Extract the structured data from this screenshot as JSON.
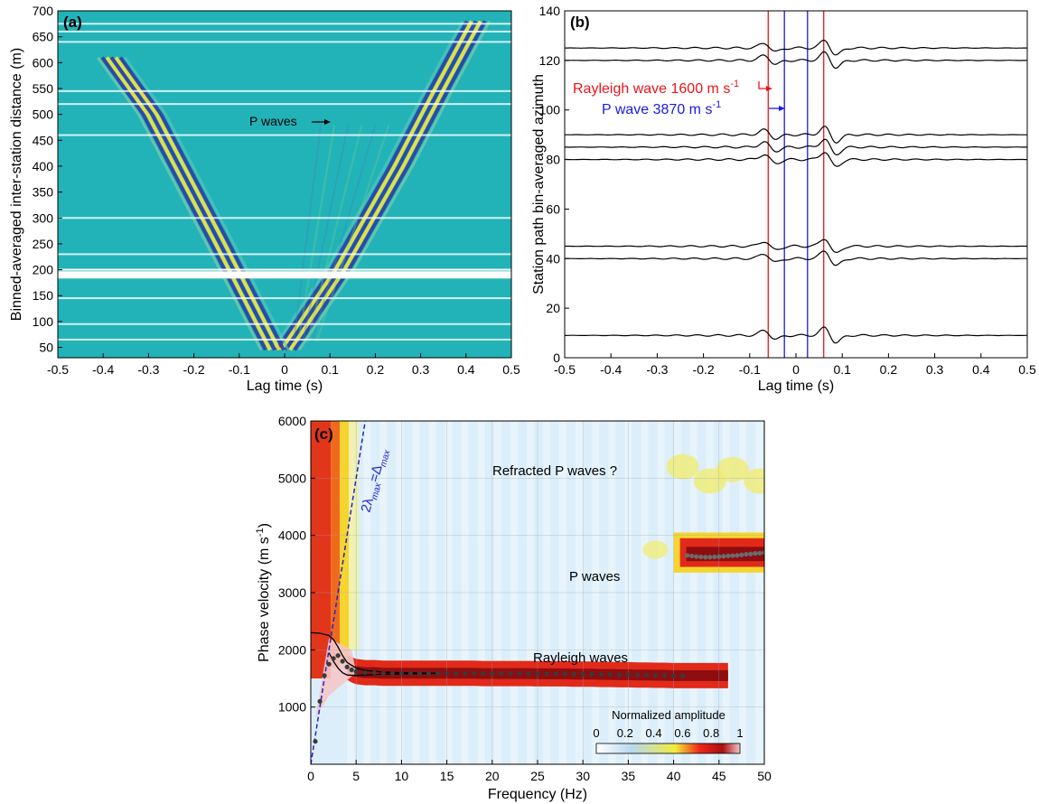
{
  "chart_data": [
    {
      "panel": "a",
      "type": "heatmap",
      "panel_label": "(a)",
      "xlabel": "Lag time (s)",
      "ylabel": "Binned-averaged inter-station distance (m)",
      "xlim": [
        -0.5,
        0.5
      ],
      "ylim": [
        30,
        700
      ],
      "xticks": [
        -0.5,
        -0.4,
        -0.3,
        -0.2,
        -0.1,
        0,
        0.1,
        0.2,
        0.3,
        0.4,
        0.5
      ],
      "xtick_labels": [
        "-0.5",
        "-0.4",
        "-0.3",
        "-0.2",
        "-0.1",
        "0",
        "0.1",
        "0.2",
        "0.3",
        "0.4",
        "0.5"
      ],
      "yticks": [
        50,
        100,
        150,
        200,
        250,
        300,
        350,
        400,
        450,
        500,
        550,
        600,
        650,
        700
      ],
      "ytick_labels": [
        "50",
        "100",
        "150",
        "200",
        "250",
        "300",
        "350",
        "400",
        "450",
        "500",
        "550",
        "600",
        "650",
        "700"
      ],
      "background_color": "#22b3b8",
      "colors": {
        "positive": "#f5e33c",
        "negative": "#2e3ea8"
      },
      "moveout_branches": [
        {
          "name": "Rayleigh wave (causal)",
          "points": [
            [
              0.0,
              45
            ],
            [
              0.12,
              200
            ],
            [
              0.25,
              400
            ],
            [
              0.34,
              550
            ],
            [
              0.42,
              680
            ]
          ]
        },
        {
          "name": "Rayleigh wave (acausal)",
          "points": [
            [
              -0.02,
              45
            ],
            [
              -0.14,
              250
            ],
            [
              -0.29,
              500
            ],
            [
              -0.38,
              610
            ]
          ]
        }
      ],
      "gap_rows_m": [
        190,
        200,
        145,
        230,
        95,
        65,
        640,
        660,
        675,
        520,
        545,
        460,
        300
      ],
      "annotation": "P waves",
      "annotation_point": [
        0.09,
        482
      ]
    },
    {
      "panel": "b",
      "type": "line",
      "panel_label": "(b)",
      "xlabel": "Lag time (s)",
      "ylabel": "Station path bin-averaged azimuth",
      "xlim": [
        -0.5,
        0.5
      ],
      "ylim": [
        0,
        140
      ],
      "xticks": [
        -0.5,
        -0.4,
        -0.3,
        -0.2,
        -0.1,
        0,
        0.1,
        0.2,
        0.3,
        0.4,
        0.5
      ],
      "xtick_labels": [
        "-0.5",
        "-0.4",
        "-0.3",
        "-0.2",
        "-0.1",
        "0",
        "0.1",
        "0.2",
        "0.3",
        "0.4",
        "0.5"
      ],
      "yticks": [
        0,
        20,
        40,
        60,
        80,
        100,
        120,
        140
      ],
      "ytick_labels": [
        "0",
        "20",
        "40",
        "60",
        "80",
        "100",
        "120",
        "140"
      ],
      "trace_baselines": [
        9,
        40,
        45,
        80,
        85,
        90,
        120,
        125
      ],
      "vertical_lines": [
        {
          "x": -0.06,
          "color": "#e8161b"
        },
        {
          "x": 0.06,
          "color": "#e8161b"
        },
        {
          "x": -0.025,
          "color": "#1a1ae6"
        },
        {
          "x": 0.025,
          "color": "#1a1ae6"
        }
      ],
      "annotations": [
        {
          "text": "Rayleigh wave 1600 m s",
          "sup": "-1",
          "color": "#e8161b",
          "anchor": [
            -0.41,
            103
          ]
        },
        {
          "text": "P wave 3870 m s",
          "sup": "-1",
          "color": "#1a1ae6",
          "anchor": [
            -0.36,
            98
          ]
        }
      ]
    },
    {
      "panel": "c",
      "type": "heatmap",
      "panel_label": "(c)",
      "xlabel": "Frequency (Hz)",
      "ylabel": "Phase velocity (m s",
      "ylabel_sup": "-1",
      "ylabel_close": ")",
      "xlim": [
        0,
        50
      ],
      "ylim": [
        0,
        6000
      ],
      "xticks": [
        0,
        5,
        10,
        15,
        20,
        25,
        30,
        35,
        40,
        45,
        50
      ],
      "xtick_labels": [
        "0",
        "5",
        "10",
        "15",
        "20",
        "25",
        "30",
        "35",
        "40",
        "45",
        "50"
      ],
      "yticks": [
        1000,
        2000,
        3000,
        4000,
        5000,
        6000
      ],
      "ytick_labels": [
        "1000",
        "2000",
        "3000",
        "4000",
        "5000",
        "6000"
      ],
      "colorbar": {
        "title": "Normalized amplitude",
        "ticks": [
          0,
          0.2,
          0.4,
          0.6,
          0.8,
          1
        ],
        "tick_labels": [
          "0",
          "0.2",
          "0.4",
          "0.6",
          "0.8",
          "1"
        ],
        "stops": [
          "#ffffff",
          "#b8d8ef",
          "#f0ec3a",
          "#ee2618",
          "#a80f10",
          "#f3c6c8"
        ]
      },
      "rayleigh_picks": {
        "frequency": [
          0.5,
          1,
          1.5,
          2,
          2.5,
          3,
          3.5,
          4,
          4.5,
          5,
          6,
          7,
          8,
          9,
          10,
          11,
          12,
          13,
          14,
          15,
          16,
          17,
          18,
          19,
          20,
          21,
          22,
          23,
          24,
          25,
          26,
          27,
          28,
          29,
          30,
          31,
          32,
          33,
          34,
          35,
          36,
          37,
          38,
          39,
          40,
          41
        ],
        "velocity": [
          400,
          1100,
          1550,
          1750,
          1850,
          1900,
          1800,
          1700,
          1650,
          1620,
          1600,
          1600,
          1590,
          1590,
          1590,
          1590,
          1590,
          1590,
          1590,
          1590,
          1590,
          1590,
          1590,
          1585,
          1585,
          1585,
          1585,
          1585,
          1585,
          1580,
          1580,
          1580,
          1580,
          1575,
          1575,
          1575,
          1570,
          1570,
          1565,
          1565,
          1560,
          1560,
          1555,
          1555,
          1550,
          1550
        ]
      },
      "p_picks": {
        "frequency": [
          41.5,
          42,
          42.5,
          43,
          43.5,
          44,
          44.5,
          45,
          45.5,
          46,
          46.5,
          47,
          47.5,
          48,
          48.5,
          49,
          49.5,
          50
        ],
        "velocity": [
          3650,
          3640,
          3630,
          3625,
          3620,
          3620,
          3625,
          3630,
          3635,
          3640,
          3645,
          3650,
          3660,
          3670,
          3675,
          3685,
          3690,
          3700
        ]
      },
      "model_curve_upper": {
        "frequency": [
          0,
          1,
          2,
          2.5,
          3,
          3.5,
          4,
          5,
          6,
          8,
          10,
          14
        ],
        "velocity": [
          2300,
          2290,
          2250,
          2180,
          2050,
          1900,
          1780,
          1680,
          1640,
          1610,
          1600,
          1590
        ]
      },
      "model_curve_lower": {
        "frequency": [
          2,
          2.5,
          3,
          3.5,
          4,
          5,
          6,
          8,
          10,
          14
        ],
        "velocity": [
          1950,
          1800,
          1680,
          1600,
          1560,
          1550,
          1560,
          1575,
          1580,
          1585
        ]
      },
      "limit_line": {
        "label_main": "2λ",
        "label_sub1": "max",
        "label_eq": "=Δ",
        "label_sub2": "max",
        "slope_m_s_per_hz": 1000,
        "color": "#2323c8"
      },
      "annotations": [
        "Refracted P waves ?",
        "P waves",
        "Rayleigh waves"
      ]
    }
  ]
}
